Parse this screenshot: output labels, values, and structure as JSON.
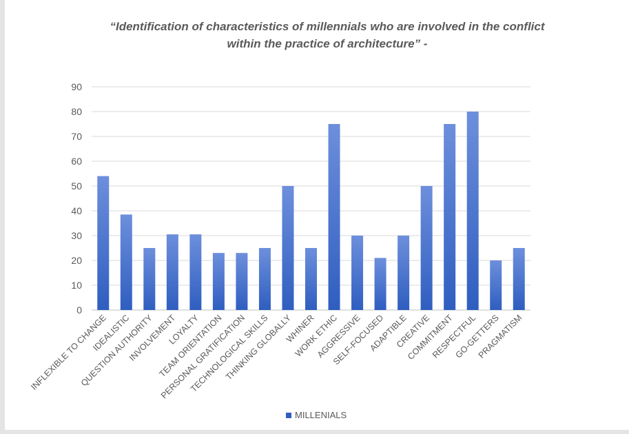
{
  "chart_data": {
    "type": "bar",
    "title_lines": [
      "“Identification of characteristics of millennials who are involved in the conflict",
      "within the practice of architecture” -"
    ],
    "categories": [
      "INFLEXIBLE TO CHANGE",
      "IDEALISTIC",
      "QUESTION AUTHORITY",
      "INVOLVEMENT",
      "LOYALTY",
      "TEAM ORIENTATION",
      "PERSONAL GRATIFICATION",
      "TECHNOLOGICAL SKILLS",
      "THINKING GLOBALLY",
      "WHINER",
      "WORK ETHIC",
      "AGGRESSIVE",
      "SELF-FOCUSED",
      "ADAPTIBLE",
      "CREATIVE",
      "COMMITMENT",
      "RESPECTFUL",
      "GO-GETTERS",
      "PRAGMATISM"
    ],
    "series": [
      {
        "name": "MILLENIALS",
        "values": [
          54,
          38.5,
          25,
          30.5,
          30.5,
          23,
          23,
          25,
          50,
          25,
          75,
          30,
          21,
          30,
          50,
          75,
          80,
          20,
          25
        ]
      }
    ],
    "ylim": [
      0,
      90
    ],
    "yticks": [
      0,
      10,
      20,
      30,
      40,
      50,
      60,
      70,
      80,
      90
    ],
    "grid": true,
    "legend_position": "bottom",
    "colors": {
      "bar_top": "#6d8fdc",
      "bar_bottom": "#2f5ec0",
      "grid": "#d9d9d9"
    }
  }
}
